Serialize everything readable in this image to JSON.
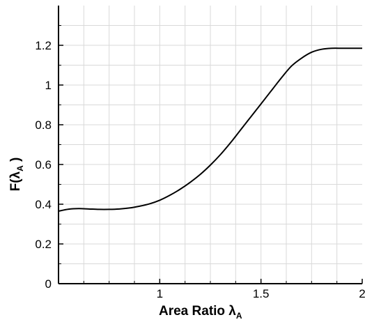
{
  "chart_data": {
    "type": "line",
    "xlabel": {
      "main": "Area Ratio λ",
      "subscript": "A"
    },
    "ylabel": {
      "main": "F(λ",
      "subscript": "A",
      "close": " )"
    },
    "xlim": [
      0.5,
      2.0
    ],
    "ylim": [
      0,
      1.4
    ],
    "x_ticks": [
      1,
      1.5,
      2
    ],
    "x_tick_labels": [
      "1",
      "1.5",
      "2"
    ],
    "y_ticks": [
      0,
      0.2,
      0.4,
      0.6,
      0.8,
      1.0,
      1.2
    ],
    "y_tick_labels": [
      "0",
      "0.2",
      "0.4",
      "0.6",
      "0.8",
      "1",
      "1.2"
    ],
    "x_grid_step": 0.125,
    "y_grid_step": 0.1,
    "grid": true,
    "colors": {
      "line": "#000000",
      "grid": "#d9d9d9",
      "axis": "#000000"
    },
    "series": [
      {
        "x": [
          0.5,
          0.55,
          0.6,
          0.65,
          0.7,
          0.75,
          0.8,
          0.85,
          0.9,
          0.95,
          1.0,
          1.05,
          1.1,
          1.15,
          1.2,
          1.25,
          1.3,
          1.35,
          1.4,
          1.45,
          1.5,
          1.55,
          1.6,
          1.65,
          1.7,
          1.75,
          1.8,
          1.85,
          1.9,
          1.95,
          2.0
        ],
        "y": [
          0.365,
          0.375,
          0.378,
          0.376,
          0.374,
          0.374,
          0.376,
          0.381,
          0.39,
          0.402,
          0.42,
          0.445,
          0.475,
          0.51,
          0.55,
          0.597,
          0.65,
          0.71,
          0.775,
          0.84,
          0.905,
          0.97,
          1.035,
          1.095,
          1.135,
          1.165,
          1.18,
          1.185,
          1.185,
          1.185,
          1.185
        ]
      }
    ]
  }
}
